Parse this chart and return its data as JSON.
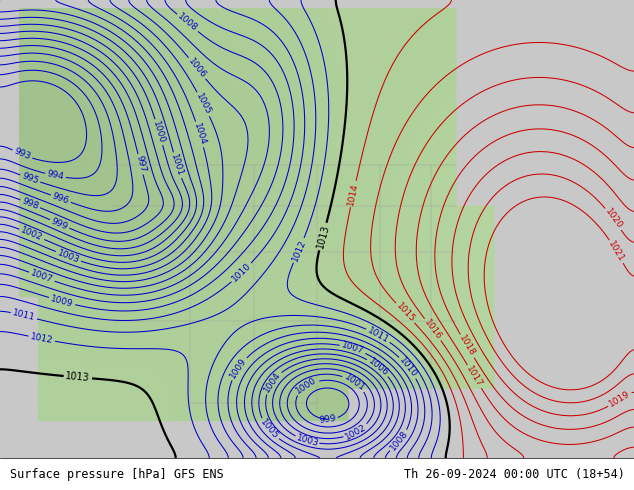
{
  "title_left": "Surface pressure [hPa] GFS ENS",
  "title_right": "Th 26-09-2024 00:00 UTC (18+54)",
  "land_color": "#b4d4a0",
  "ocean_color": "#c8c8c8",
  "blue_color": "#0000cc",
  "red_color": "#cc0000",
  "black_color": "#000000",
  "figsize": [
    6.34,
    4.9
  ],
  "dpi": 100,
  "bottom_bar_color": "#ffffff",
  "bottom_bar_height": 0.065,
  "label_fontsize": 6.5,
  "black_lw": 1.6,
  "blue_lw": 0.75,
  "red_lw": 0.75,
  "grid_color": "#999999",
  "grid_lw": 0.3
}
